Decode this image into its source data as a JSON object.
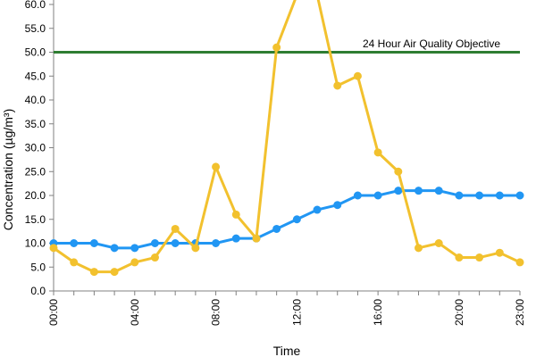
{
  "chart_data": {
    "type": "line",
    "xlabel": "Time",
    "ylabel": "Concentration (µg/m³)",
    "ylim": [
      0,
      60
    ],
    "y_ticks": [
      "0.0",
      "5.0",
      "10.0",
      "15.0",
      "20.0",
      "25.0",
      "30.0",
      "35.0",
      "40.0",
      "45.0",
      "50.0",
      "55.0",
      "60.0"
    ],
    "x_tick_labels": [
      "00:00",
      "04:00",
      "08:00",
      "12:00",
      "16:00",
      "20:00",
      "23:00"
    ],
    "x_tick_hours": [
      0,
      4,
      8,
      12,
      16,
      20,
      23
    ],
    "x_hours": [
      0,
      1,
      2,
      3,
      4,
      5,
      6,
      7,
      8,
      9,
      10,
      11,
      12,
      13,
      14,
      15,
      16,
      17,
      18,
      19,
      20,
      21,
      22,
      23
    ],
    "grid": false,
    "series": [
      {
        "color": "#2196f3",
        "values": [
          10,
          10,
          10,
          9,
          9,
          10,
          10,
          10,
          10,
          11,
          11,
          13,
          15,
          17,
          18,
          20,
          20,
          21,
          21,
          21,
          20,
          20,
          20,
          20
        ]
      },
      {
        "color": "#f2c12e",
        "values": [
          9,
          6,
          4,
          4,
          6,
          7,
          13,
          9,
          26,
          16,
          11,
          51,
          62,
          62,
          43,
          45,
          29,
          25,
          9,
          10,
          7,
          7,
          8,
          6
        ]
      }
    ],
    "reference_line": {
      "value": 50,
      "label": "24 Hour Air Quality Objective",
      "color": "#2e7d32"
    }
  }
}
